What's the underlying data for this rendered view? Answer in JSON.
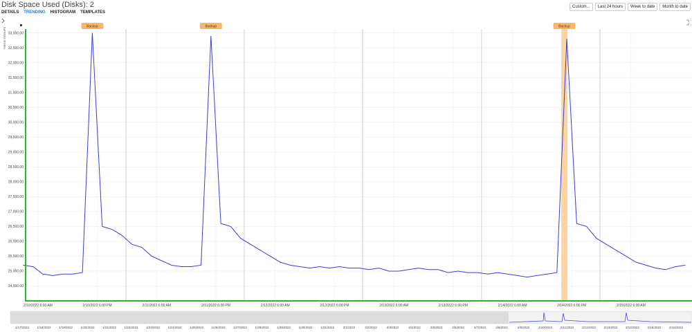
{
  "header": {
    "title": "Disk Space Used (Disks): 2",
    "tabs": [
      "DETAILS",
      "TRENDING",
      "HISTOGRAM",
      "TEMPLATES"
    ],
    "active_tab": 1,
    "buttons": [
      "Custom...",
      "Last 24 hours",
      "Week to date",
      "Month to date"
    ]
  },
  "side_label": "TREND GROUPS",
  "chart_data": {
    "type": "line",
    "color": "#3b3bd9",
    "x": [
      "2022-02-10T03:00",
      "2022-02-10T05:00",
      "2022-02-10T07:00",
      "2022-02-10T09:00",
      "2022-02-10T11:00",
      "2022-02-10T13:00",
      "2022-02-10T15:00",
      "2022-02-10T17:00",
      "2022-02-10T19:00",
      "2022-02-10T21:00",
      "2022-02-10T23:00",
      "2022-02-11T01:00",
      "2022-02-11T03:00",
      "2022-02-11T05:00",
      "2022-02-11T07:00",
      "2022-02-11T09:00",
      "2022-02-11T11:00",
      "2022-02-11T13:00",
      "2022-02-11T15:00",
      "2022-02-11T17:00",
      "2022-02-11T19:00",
      "2022-02-11T21:00",
      "2022-02-11T23:00",
      "2022-02-12T01:00",
      "2022-02-12T03:00",
      "2022-02-12T05:00",
      "2022-02-12T07:00",
      "2022-02-12T09:00",
      "2022-02-12T11:00",
      "2022-02-12T13:00",
      "2022-02-12T15:00",
      "2022-02-12T17:00",
      "2022-02-12T19:00",
      "2022-02-12T21:00",
      "2022-02-12T23:00",
      "2022-02-13T01:00",
      "2022-02-13T03:00",
      "2022-02-13T05:00",
      "2022-02-13T07:00",
      "2022-02-13T09:00",
      "2022-02-13T11:00",
      "2022-02-13T13:00",
      "2022-02-13T15:00",
      "2022-02-13T17:00",
      "2022-02-13T19:00",
      "2022-02-13T21:00",
      "2022-02-13T23:00",
      "2022-02-14T01:00",
      "2022-02-14T03:00",
      "2022-02-14T05:00",
      "2022-02-14T07:00",
      "2022-02-14T09:00",
      "2022-02-14T11:00",
      "2022-02-14T13:00",
      "2022-02-14T15:00",
      "2022-02-14T17:00",
      "2022-02-14T19:00",
      "2022-02-14T21:00",
      "2022-02-14T23:00",
      "2022-02-15T01:00",
      "2022-02-15T03:00",
      "2022-02-15T05:00",
      "2022-02-15T07:00",
      "2022-02-15T09:00",
      "2022-02-15T11:00",
      "2022-02-15T13:00",
      "2022-02-15T15:00",
      "2022-02-15T17:00"
    ],
    "values": [
      25200,
      25150,
      24900,
      24850,
      24900,
      24900,
      24950,
      33000,
      26500,
      26400,
      26200,
      25900,
      25800,
      25500,
      25350,
      25200,
      25150,
      25150,
      25200,
      32900,
      26600,
      26500,
      26100,
      25900,
      25700,
      25500,
      25300,
      25200,
      25150,
      25100,
      25150,
      25100,
      25150,
      25100,
      25100,
      25050,
      25100,
      25000,
      25000,
      25050,
      25100,
      25050,
      25050,
      24950,
      25000,
      24950,
      24950,
      24900,
      24950,
      24900,
      24850,
      24800,
      24850,
      24900,
      24950,
      32800,
      26600,
      26500,
      26100,
      25900,
      25700,
      25500,
      25300,
      25200,
      25100,
      25050,
      25150,
      25200
    ],
    "xlim": [
      "2022-02-10T03:30",
      "2022-02-15T18:20"
    ],
    "xticks": [
      {
        "value": "2022-02-10T06:00",
        "label": "2/10/2022 6:00 AM"
      },
      {
        "value": "2022-02-10T18:00",
        "label": "2/10/2022 6:00 PM"
      },
      {
        "value": "2022-02-11T06:00",
        "label": "2/11/2022 6:00 AM"
      },
      {
        "value": "2022-02-11T18:00",
        "label": "2/11/2022 6:00 PM"
      },
      {
        "value": "2022-02-12T06:00",
        "label": "2/12/2022 6:00 AM"
      },
      {
        "value": "2022-02-12T18:00",
        "label": "2/12/2022 6:00 PM"
      },
      {
        "value": "2022-02-13T06:00",
        "label": "2/13/2022 6:00 AM"
      },
      {
        "value": "2022-02-13T18:00",
        "label": "2/13/2022 6:00 PM"
      },
      {
        "value": "2022-02-14T06:00",
        "label": "2/14/2022 6:00 AM"
      },
      {
        "value": "2022-02-14T18:00",
        "label": "2/14/2022 6:00 PM"
      },
      {
        "value": "2022-02-15T06:00",
        "label": "2/15/2022 6:00 AM"
      }
    ],
    "ylim": [
      24000,
      33130
    ],
    "yticks": [
      {
        "value": 24500,
        "label": "24,500.00"
      },
      {
        "value": 25000,
        "label": "25,000.00"
      },
      {
        "value": 25500,
        "label": "25,500.00"
      },
      {
        "value": 26000,
        "label": "26,000.00"
      },
      {
        "value": 26500,
        "label": "26,500.00"
      },
      {
        "value": 27000,
        "label": "27,000.00"
      },
      {
        "value": 27500,
        "label": "27,500.00"
      },
      {
        "value": 28000,
        "label": "28,000.00"
      },
      {
        "value": 28500,
        "label": "28,500.00"
      },
      {
        "value": 29000,
        "label": "29,000.00"
      },
      {
        "value": 29500,
        "label": "29,500.00"
      },
      {
        "value": 30000,
        "label": "30,000.00"
      },
      {
        "value": 30500,
        "label": "30,500.00"
      },
      {
        "value": 31000,
        "label": "31,000.00"
      },
      {
        "value": 31500,
        "label": "31,500.00"
      },
      {
        "value": 32000,
        "label": "32,000.00"
      },
      {
        "value": 32500,
        "label": "32,500.00"
      },
      {
        "value": 33000,
        "label": "33,000.00"
      }
    ],
    "grid": true,
    "annotations": [
      {
        "label": "Backup",
        "x": "2022-02-10T17:00",
        "highlight": false
      },
      {
        "label": "Backup",
        "x": "2022-02-11T17:00",
        "highlight": false
      },
      {
        "label": "Backup",
        "x": "2022-02-14T16:30",
        "highlight": true
      }
    ]
  },
  "navigator": {
    "dates": [
      "1/17/2022",
      "1/18/2022",
      "1/19/2022",
      "1/20/2022",
      "1/21/2022",
      "1/22/2022",
      "1/23/2022",
      "1/24/2022",
      "1/25/2022",
      "1/26/2022",
      "1/27/2022",
      "1/28/2022",
      "1/29/2022",
      "1/30/2022",
      "1/31/2022",
      "2/1/2022",
      "2/2/2022",
      "2/3/2022",
      "2/4/2022",
      "2/5/2022",
      "2/6/2022",
      "2/7/2022",
      "2/8/2022",
      "2/9/2022",
      "2/10/2022",
      "2/11/2022",
      "2/12/2022",
      "2/13/2022",
      "2/14/2022",
      "2/15/2022",
      "2/16/2022"
    ]
  }
}
